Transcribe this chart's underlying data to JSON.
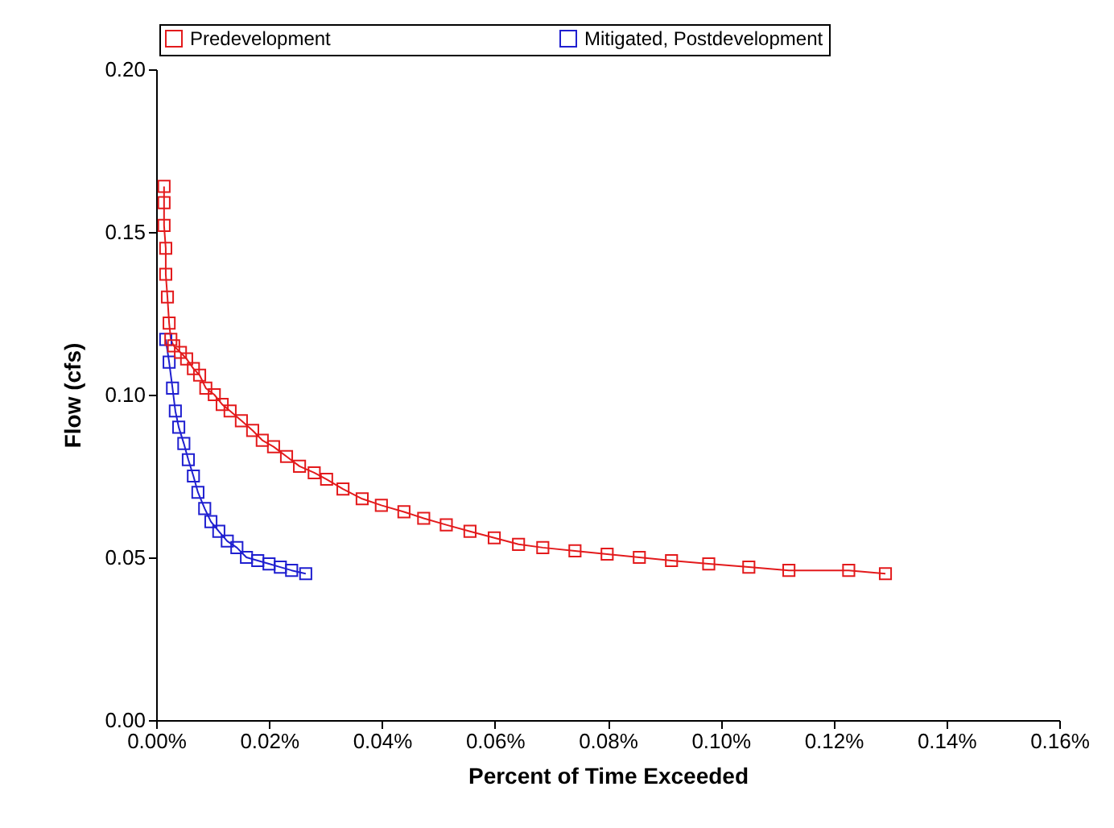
{
  "chart_data": {
    "type": "line",
    "xlabel": "Percent of Time Exceeded",
    "ylabel": "Flow (cfs)",
    "xlim": [
      0,
      0.16
    ],
    "ylim": [
      0,
      0.2
    ],
    "xticks": [
      {
        "value": 0,
        "label": "0.00%"
      },
      {
        "value": 0.02,
        "label": "0.02%"
      },
      {
        "value": 0.04,
        "label": "0.04%"
      },
      {
        "value": 0.06,
        "label": "0.06%"
      },
      {
        "value": 0.08,
        "label": "0.08%"
      },
      {
        "value": 0.1,
        "label": "0.10%"
      },
      {
        "value": 0.12,
        "label": "0.12%"
      },
      {
        "value": 0.14,
        "label": "0.14%"
      },
      {
        "value": 0.16,
        "label": "0.16%"
      }
    ],
    "yticks": [
      {
        "value": 0,
        "label": "0.00"
      },
      {
        "value": 0.05,
        "label": "0.05"
      },
      {
        "value": 0.1,
        "label": "0.10"
      },
      {
        "value": 0.15,
        "label": "0.15"
      },
      {
        "value": 0.2,
        "label": "0.20"
      }
    ],
    "grid": false,
    "legend": "top",
    "marker": "square",
    "line_style": "solid",
    "series": [
      {
        "name": "Predevelopment",
        "color": "#e31a1c",
        "x": [
          0.0014,
          0.0014,
          0.0014,
          0.0017,
          0.0017,
          0.002,
          0.0023,
          0.0026,
          0.0031,
          0.0043,
          0.0054,
          0.0066,
          0.0077,
          0.0088,
          0.0103,
          0.0117,
          0.0131,
          0.0151,
          0.0171,
          0.0188,
          0.0208,
          0.0231,
          0.0254,
          0.028,
          0.0302,
          0.0331,
          0.0365,
          0.0399,
          0.0439,
          0.0474,
          0.0514,
          0.0556,
          0.0599,
          0.0642,
          0.0685,
          0.0742,
          0.0799,
          0.0856,
          0.0913,
          0.0979,
          0.105,
          0.1121,
          0.1227,
          0.1292
        ],
        "values": [
          0.164,
          0.159,
          0.152,
          0.145,
          0.137,
          0.13,
          0.122,
          0.117,
          0.115,
          0.113,
          0.111,
          0.108,
          0.106,
          0.102,
          0.1,
          0.097,
          0.095,
          0.092,
          0.089,
          0.086,
          0.084,
          0.081,
          0.078,
          0.076,
          0.074,
          0.071,
          0.068,
          0.066,
          0.064,
          0.062,
          0.06,
          0.058,
          0.056,
          0.054,
          0.053,
          0.052,
          0.051,
          0.05,
          0.049,
          0.048,
          0.047,
          0.046,
          0.046,
          0.045
        ]
      },
      {
        "name": "Mitigated, Postdevelopment",
        "color": "#1f1fd0",
        "x": [
          0.0017,
          0.0023,
          0.0029,
          0.0034,
          0.004,
          0.0049,
          0.0057,
          0.0066,
          0.0074,
          0.0086,
          0.0097,
          0.0111,
          0.0126,
          0.0143,
          0.016,
          0.018,
          0.02,
          0.022,
          0.024,
          0.0265
        ],
        "values": [
          0.117,
          0.11,
          0.102,
          0.095,
          0.09,
          0.085,
          0.08,
          0.075,
          0.07,
          0.065,
          0.061,
          0.058,
          0.055,
          0.053,
          0.05,
          0.049,
          0.048,
          0.047,
          0.046,
          0.045
        ]
      }
    ]
  }
}
